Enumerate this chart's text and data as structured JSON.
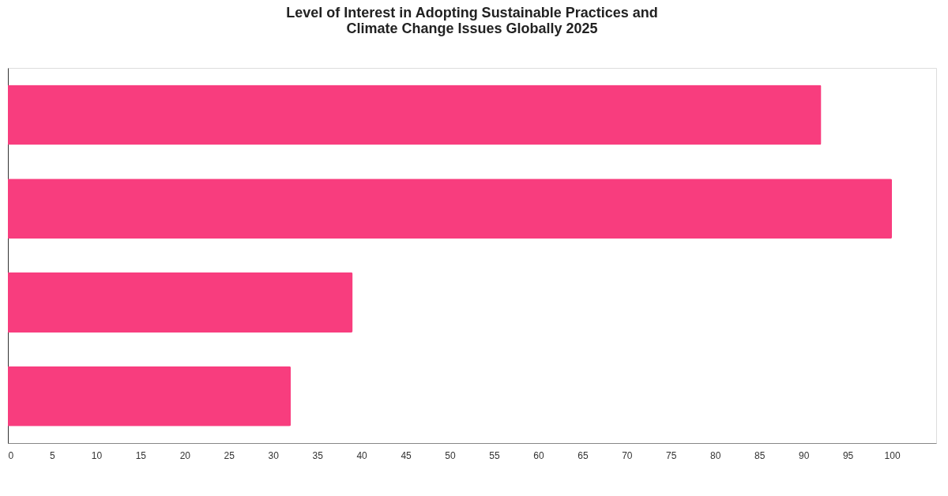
{
  "chart_data": {
    "type": "bar",
    "orientation": "horizontal",
    "title": [
      "Level of Interest in Adopting Sustainable Practices and",
      "Climate Change Issues Globally 2025"
    ],
    "categories": [
      null,
      null,
      null,
      null
    ],
    "values": [
      92,
      100,
      39,
      32
    ],
    "color": "#f83d7e",
    "xlim": [
      0,
      105
    ],
    "xticks": [
      0,
      5,
      10,
      15,
      20,
      25,
      30,
      35,
      40,
      45,
      50,
      55,
      60,
      65,
      70,
      75,
      80,
      85,
      90,
      95,
      100
    ],
    "tick_labels": "x"
  }
}
